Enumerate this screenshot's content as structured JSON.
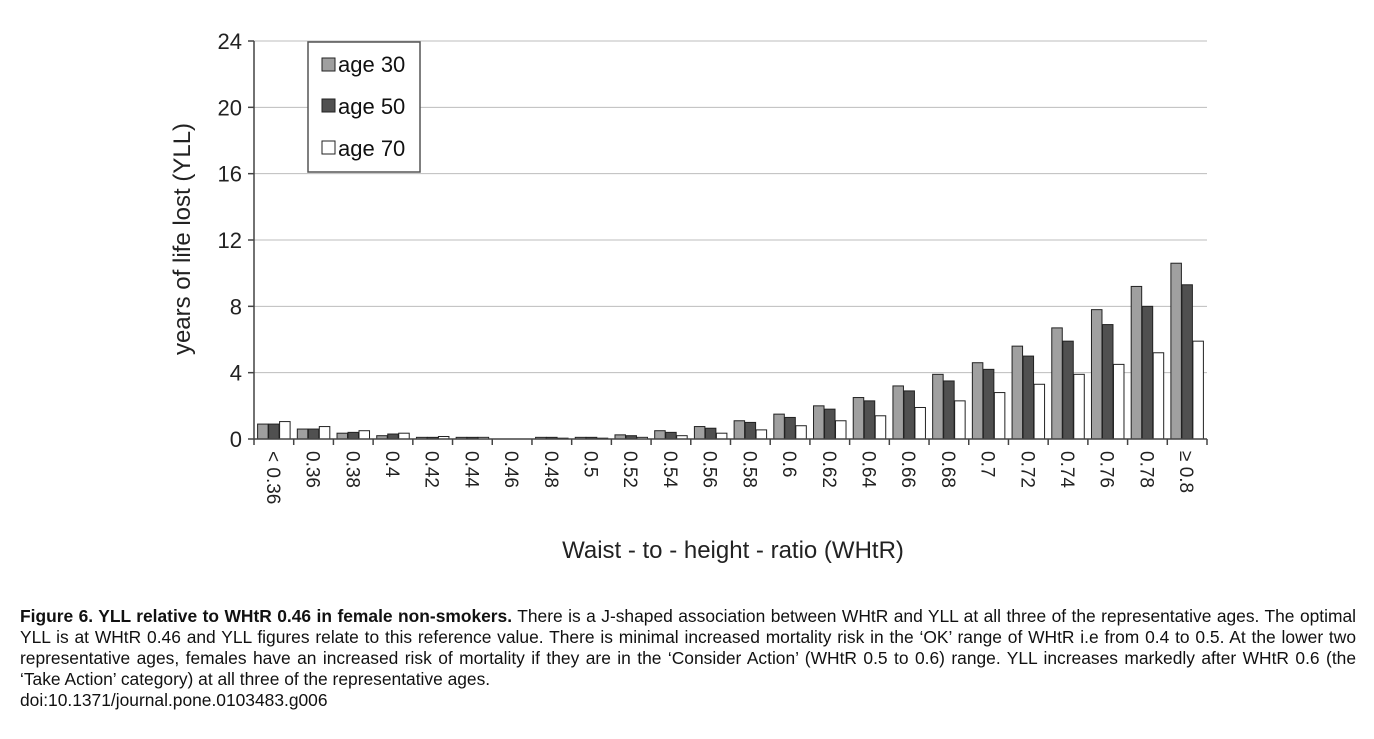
{
  "chart_data": {
    "type": "bar",
    "xlabel": "Waist - to - height - ratio (WHtR)",
    "ylabel": "years of life lost (YLL)",
    "ylim": [
      0,
      24
    ],
    "yticks": [
      "0",
      "4",
      "8",
      "12",
      "16",
      "20",
      "24"
    ],
    "grid": "horizontal",
    "legend_position": "top-left",
    "categories": [
      "< 0.36",
      "0.36",
      "0.38",
      "0.4",
      "0.42",
      "0.44",
      "0.46",
      "0.48",
      "0.5",
      "0.52",
      "0.54",
      "0.56",
      "0.58",
      "0.6",
      "0.62",
      "0.64",
      "0.66",
      "0.68",
      "0.7",
      "0.72",
      "0.74",
      "0.76",
      "0.78",
      "≥ 0.8"
    ],
    "series": [
      {
        "name": "age 30",
        "color": "#a0a0a0",
        "values": [
          0.9,
          0.6,
          0.35,
          0.2,
          0.1,
          0.1,
          0.0,
          0.1,
          0.1,
          0.25,
          0.5,
          0.75,
          1.1,
          1.5,
          2.0,
          2.5,
          3.2,
          3.9,
          4.6,
          5.6,
          6.7,
          7.8,
          9.2,
          10.6
        ]
      },
      {
        "name": "age 50",
        "color": "#505050",
        "values": [
          0.9,
          0.6,
          0.4,
          0.3,
          0.1,
          0.1,
          0.0,
          0.1,
          0.1,
          0.2,
          0.4,
          0.65,
          1.0,
          1.3,
          1.8,
          2.3,
          2.9,
          3.5,
          4.2,
          5.0,
          5.9,
          6.9,
          8.0,
          9.3
        ]
      },
      {
        "name": "age 70",
        "color": "#ffffff",
        "values": [
          1.05,
          0.75,
          0.5,
          0.35,
          0.15,
          0.1,
          0.0,
          0.05,
          0.05,
          0.1,
          0.2,
          0.35,
          0.55,
          0.8,
          1.1,
          1.4,
          1.9,
          2.3,
          2.8,
          3.3,
          3.9,
          4.5,
          5.2,
          5.9
        ]
      }
    ]
  },
  "caption": {
    "title": "Figure 6. YLL relative to WHtR 0.46 in female non-smokers.",
    "body": " There is a J-shaped association between WHtR and YLL at all three of the representative ages. The optimal YLL is at WHtR 0.46 and YLL figures relate to this reference value. There is minimal increased mortality risk in the ‘OK’ range of WHtR i.e from 0.4 to 0.5. At the lower two representative ages, females have an increased risk of mortality if they are in the ‘Consider Action’ (WHtR 0.5 to 0.6) range. YLL increases markedly after WHtR 0.6 (the ‘Take Action’ category) at all three of the representative ages.",
    "doi": "doi:10.1371/journal.pone.0103483.g006"
  }
}
